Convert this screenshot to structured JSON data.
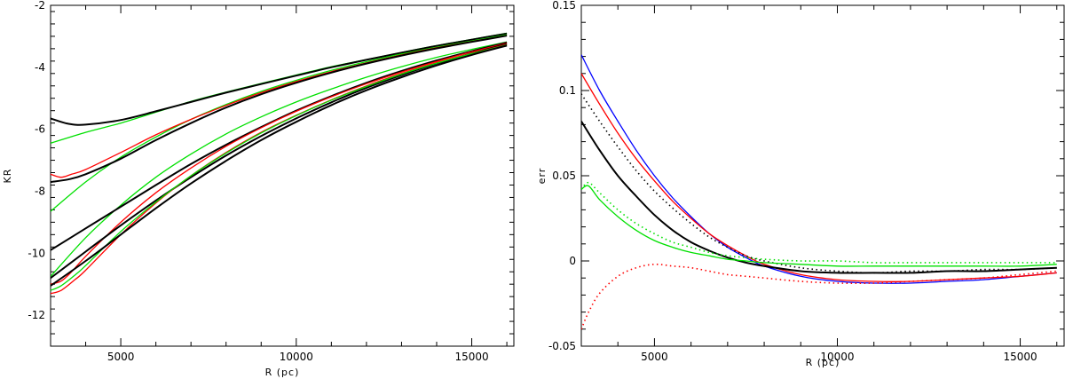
{
  "chart_data": [
    {
      "type": "line",
      "xlabel": "R (pc)",
      "ylabel": "KR",
      "xlim": [
        3000,
        16200
      ],
      "ylim": [
        -13,
        -2
      ],
      "xticks": [
        5000,
        10000,
        15000
      ],
      "xtick_labels": [
        "5000",
        "10000",
        "15000"
      ],
      "yticks": [
        -12,
        -10,
        -8,
        -6,
        -4,
        -2
      ],
      "ytick_labels": [
        "-12",
        "-10",
        "-8",
        "-6",
        "-4",
        "-2"
      ],
      "grid": false,
      "series": [
        {
          "color": "#00e000",
          "style": "solid",
          "x": [
            3000,
            4000,
            5000,
            6000,
            7000,
            8000,
            9000,
            10000,
            11000,
            12000,
            13000,
            14000,
            15000,
            16000
          ],
          "y": [
            -6.45,
            -6.1,
            -5.8,
            -5.45,
            -5.1,
            -4.8,
            -4.52,
            -4.25,
            -3.98,
            -3.75,
            -3.52,
            -3.3,
            -3.1,
            -2.9
          ]
        },
        {
          "color": "#000000",
          "style": "solid",
          "x": [
            3000,
            3500,
            4000,
            5000,
            6000,
            7000,
            8000,
            9000,
            10000,
            11000,
            12000,
            13000,
            14000,
            15000,
            16000
          ],
          "y": [
            -5.65,
            -5.82,
            -5.85,
            -5.7,
            -5.42,
            -5.12,
            -4.82,
            -4.54,
            -4.27,
            -4.0,
            -3.76,
            -3.53,
            -3.31,
            -3.11,
            -2.91
          ]
        },
        {
          "color": "#00e000",
          "style": "solid",
          "x": [
            3000,
            4000,
            5000,
            6000,
            7000,
            8000,
            9000,
            10000,
            11000,
            12000,
            13000,
            14000,
            15000,
            16000
          ],
          "y": [
            -8.65,
            -7.7,
            -6.9,
            -6.25,
            -5.68,
            -5.2,
            -4.78,
            -4.42,
            -4.1,
            -3.82,
            -3.57,
            -3.35,
            -3.15,
            -2.95
          ]
        },
        {
          "color": "#ff0000",
          "style": "solid",
          "x": [
            3000,
            3300,
            3600,
            4000,
            5000,
            6000,
            7000,
            8000,
            9000,
            10000,
            11000,
            12000,
            13000,
            14000,
            15000,
            16000
          ],
          "y": [
            -7.45,
            -7.55,
            -7.45,
            -7.3,
            -6.75,
            -6.18,
            -5.68,
            -5.23,
            -4.82,
            -4.46,
            -4.14,
            -3.86,
            -3.6,
            -3.37,
            -3.17,
            -2.97
          ]
        },
        {
          "color": "#000000",
          "style": "solid",
          "x": [
            3000,
            3500,
            4000,
            5000,
            6000,
            7000,
            8000,
            9000,
            10000,
            11000,
            12000,
            13000,
            14000,
            15000,
            16000
          ],
          "y": [
            -7.7,
            -7.62,
            -7.45,
            -6.95,
            -6.35,
            -5.8,
            -5.3,
            -4.87,
            -4.5,
            -4.17,
            -3.88,
            -3.62,
            -3.39,
            -3.18,
            -2.98
          ]
        },
        {
          "color": "#00e000",
          "style": "solid",
          "x": [
            3000,
            4000,
            5000,
            6000,
            7000,
            8000,
            9000,
            10000,
            11000,
            12000,
            13000,
            14000,
            15000,
            16000
          ],
          "y": [
            -10.75,
            -9.5,
            -8.45,
            -7.55,
            -6.8,
            -6.15,
            -5.6,
            -5.12,
            -4.7,
            -4.32,
            -3.98,
            -3.68,
            -3.42,
            -3.18
          ]
        },
        {
          "color": "#000000",
          "style": "solid",
          "x": [
            3000,
            4000,
            5000,
            6000,
            7000,
            8000,
            9000,
            10000,
            11000,
            12000,
            13000,
            14000,
            15000,
            16000
          ],
          "y": [
            -9.9,
            -9.2,
            -8.5,
            -7.8,
            -7.12,
            -6.5,
            -5.93,
            -5.4,
            -4.93,
            -4.5,
            -4.12,
            -3.78,
            -3.48,
            -3.2
          ]
        },
        {
          "color": "#ff0000",
          "style": "solid",
          "x": [
            3000,
            3300,
            3600,
            4000,
            5000,
            6000,
            7000,
            8000,
            9000,
            10000,
            11000,
            12000,
            13000,
            14000,
            15000,
            16000
          ],
          "y": [
            -11.0,
            -10.9,
            -10.6,
            -10.1,
            -9.0,
            -8.05,
            -7.25,
            -6.55,
            -5.95,
            -5.42,
            -4.95,
            -4.53,
            -4.15,
            -3.81,
            -3.5,
            -3.22
          ]
        },
        {
          "color": "#000000",
          "style": "solid",
          "x": [
            3000,
            4000,
            5000,
            6000,
            7000,
            8000,
            9000,
            10000,
            11000,
            12000,
            13000,
            14000,
            15000,
            16000
          ],
          "y": [
            -10.8,
            -9.95,
            -9.1,
            -8.3,
            -7.55,
            -6.85,
            -6.22,
            -5.65,
            -5.13,
            -4.66,
            -4.25,
            -3.88,
            -3.55,
            -3.25
          ]
        },
        {
          "color": "#ff0000",
          "style": "solid",
          "x": [
            3000,
            3300,
            3700,
            4000,
            5000,
            6000,
            7000,
            8000,
            9000,
            10000,
            11000,
            12000,
            13000,
            14000,
            15000,
            16000
          ],
          "y": [
            -11.3,
            -11.2,
            -10.85,
            -10.55,
            -9.4,
            -8.38,
            -7.5,
            -6.75,
            -6.1,
            -5.55,
            -5.05,
            -4.6,
            -4.2,
            -3.85,
            -3.55,
            -3.27
          ]
        },
        {
          "color": "#00e000",
          "style": "solid",
          "x": [
            3000,
            3300,
            3700,
            4000,
            5000,
            6000,
            7000,
            8000,
            9000,
            10000,
            11000,
            12000,
            13000,
            14000,
            15000,
            16000
          ],
          "y": [
            -11.2,
            -11.05,
            -10.7,
            -10.4,
            -9.3,
            -8.35,
            -7.5,
            -6.77,
            -6.12,
            -5.56,
            -5.06,
            -4.62,
            -4.22,
            -3.87,
            -3.56,
            -3.28
          ]
        },
        {
          "color": "#000000",
          "style": "solid",
          "x": [
            3000,
            4000,
            5000,
            6000,
            7000,
            8000,
            9000,
            10000,
            11000,
            12000,
            13000,
            14000,
            15000,
            16000
          ],
          "y": [
            -11.05,
            -10.25,
            -9.4,
            -8.55,
            -7.75,
            -7.02,
            -6.35,
            -5.76,
            -5.22,
            -4.74,
            -4.32,
            -3.94,
            -3.6,
            -3.3
          ]
        }
      ]
    },
    {
      "type": "line",
      "xlabel": "R (pc)",
      "ylabel": "err",
      "xlim": [
        3000,
        16200
      ],
      "ylim": [
        -0.05,
        0.15
      ],
      "xticks": [
        5000,
        10000,
        15000
      ],
      "xtick_labels": [
        "5000",
        "10000",
        "15000"
      ],
      "yticks": [
        -0.05,
        0,
        0.05,
        0.1,
        0.15
      ],
      "ytick_labels": [
        "-0.05",
        "0",
        "0.05",
        "0.1",
        "0.15"
      ],
      "grid": false,
      "series": [
        {
          "color": "#0000ff",
          "style": "solid",
          "x": [
            3000,
            3500,
            4000,
            4500,
            5000,
            5500,
            6000,
            6500,
            7000,
            7500,
            8000,
            9000,
            10000,
            11000,
            12000,
            13000,
            14000,
            15000,
            16000
          ],
          "y": [
            0.121,
            0.1,
            0.082,
            0.065,
            0.05,
            0.037,
            0.026,
            0.016,
            0.008,
            0.002,
            -0.003,
            -0.009,
            -0.012,
            -0.013,
            -0.013,
            -0.012,
            -0.011,
            -0.009,
            -0.007
          ]
        },
        {
          "color": "#ff0000",
          "style": "solid",
          "x": [
            3000,
            3500,
            4000,
            4500,
            5000,
            5500,
            6000,
            6500,
            7000,
            7500,
            8000,
            9000,
            10000,
            11000,
            12000,
            13000,
            14000,
            15000,
            16000
          ],
          "y": [
            0.11,
            0.092,
            0.075,
            0.06,
            0.047,
            0.035,
            0.025,
            0.016,
            0.009,
            0.003,
            -0.002,
            -0.008,
            -0.011,
            -0.012,
            -0.012,
            -0.011,
            -0.01,
            -0.009,
            -0.007
          ]
        },
        {
          "color": "#000000",
          "style": "dotted",
          "x": [
            3000,
            3500,
            4000,
            4500,
            5000,
            5500,
            6000,
            6500,
            7000,
            7500,
            8000,
            9000,
            10000,
            11000,
            12000,
            13000,
            14000,
            15000,
            16000
          ],
          "y": [
            0.098,
            0.082,
            0.067,
            0.053,
            0.041,
            0.031,
            0.022,
            0.014,
            0.008,
            0.003,
            0.0,
            -0.004,
            -0.006,
            -0.007,
            -0.006,
            -0.006,
            -0.005,
            -0.005,
            -0.004
          ]
        },
        {
          "color": "#000000",
          "style": "solid",
          "x": [
            3000,
            3500,
            4000,
            4500,
            5000,
            5500,
            6000,
            6500,
            7000,
            7500,
            8000,
            9000,
            10000,
            11000,
            12000,
            13000,
            14000,
            15000,
            16000
          ],
          "y": [
            0.082,
            0.065,
            0.05,
            0.038,
            0.027,
            0.018,
            0.011,
            0.006,
            0.002,
            -0.001,
            -0.003,
            -0.006,
            -0.007,
            -0.007,
            -0.007,
            -0.006,
            -0.006,
            -0.005,
            -0.004
          ]
        },
        {
          "color": "#00e000",
          "style": "dotted",
          "x": [
            3000,
            3200,
            3500,
            4000,
            4500,
            5000,
            5500,
            6000,
            6500,
            7000,
            7500,
            8000,
            9000,
            10000,
            11000,
            12000,
            13000,
            14000,
            15000,
            16000
          ],
          "y": [
            0.042,
            0.046,
            0.04,
            0.03,
            0.022,
            0.016,
            0.011,
            0.008,
            0.005,
            0.003,
            0.002,
            0.001,
            0.0,
            0.0,
            -0.001,
            -0.001,
            -0.001,
            -0.001,
            -0.001,
            -0.001
          ]
        },
        {
          "color": "#00e000",
          "style": "solid",
          "x": [
            3000,
            3200,
            3500,
            4000,
            4500,
            5000,
            5500,
            6000,
            6500,
            7000,
            7500,
            8000,
            9000,
            10000,
            11000,
            12000,
            13000,
            14000,
            15000,
            16000
          ],
          "y": [
            0.042,
            0.044,
            0.036,
            0.026,
            0.018,
            0.012,
            0.008,
            0.005,
            0.003,
            0.001,
            0.0,
            -0.001,
            -0.002,
            -0.003,
            -0.003,
            -0.003,
            -0.003,
            -0.003,
            -0.003,
            -0.002
          ]
        },
        {
          "color": "#ff0000",
          "style": "dotted",
          "x": [
            3000,
            3200,
            3500,
            4000,
            4500,
            5000,
            5500,
            6000,
            6500,
            7000,
            7500,
            8000,
            9000,
            10000,
            11000,
            12000,
            13000,
            14000,
            15000,
            16000
          ],
          "y": [
            -0.04,
            -0.03,
            -0.019,
            -0.009,
            -0.004,
            -0.002,
            -0.003,
            -0.004,
            -0.006,
            -0.008,
            -0.009,
            -0.01,
            -0.012,
            -0.013,
            -0.013,
            -0.012,
            -0.011,
            -0.01,
            -0.008,
            -0.006
          ]
        }
      ]
    }
  ]
}
